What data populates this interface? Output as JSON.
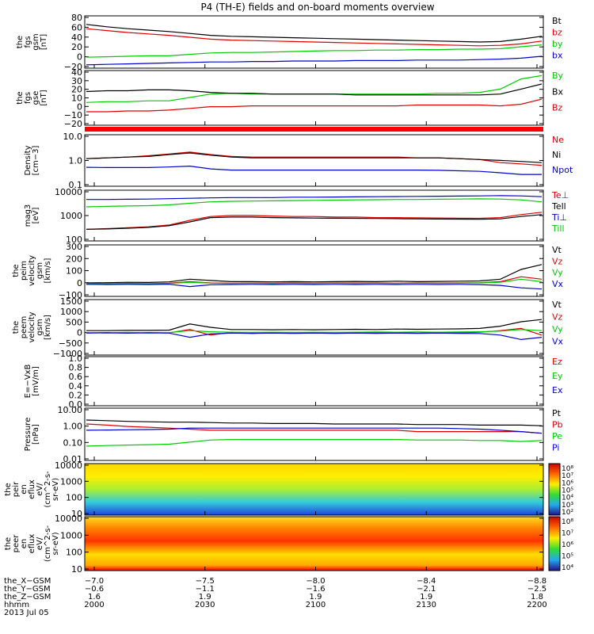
{
  "title": "P4 (TH-E) fields and on-board moments overview",
  "colors": {
    "black": "#000000",
    "red": "#dd0000",
    "green": "#00cc00",
    "blue": "#0000cc"
  },
  "chart_data": [
    {
      "type": "line",
      "ylabel": [
        "the",
        "fgs",
        "gsm",
        "[nT]"
      ],
      "yticks": [
        "80",
        "60",
        "40",
        "20",
        "0",
        "−20"
      ],
      "ylim": [
        -25,
        85
      ],
      "series": [
        {
          "name": "Bt",
          "color": "black",
          "values": [
            67,
            62,
            58,
            55,
            52,
            48,
            44,
            42,
            41,
            40,
            39,
            38,
            37,
            36,
            35,
            34,
            33,
            32,
            31,
            30,
            31,
            36,
            42
          ]
        },
        {
          "name": "bz",
          "color": "red",
          "values": [
            58,
            54,
            50,
            47,
            44,
            40,
            36,
            34,
            33,
            32,
            31,
            30,
            29,
            28,
            27,
            26,
            25,
            24,
            23,
            22,
            23,
            26,
            32
          ]
        },
        {
          "name": "by",
          "color": "green",
          "values": [
            -2,
            -1,
            0,
            1,
            1,
            4,
            7,
            8,
            8,
            9,
            10,
            11,
            12,
            12,
            13,
            13,
            14,
            14,
            15,
            15,
            16,
            20,
            24
          ]
        },
        {
          "name": "bx",
          "color": "blue",
          "values": [
            -18,
            -17,
            -16,
            -15,
            -14,
            -13,
            -12,
            -12,
            -11,
            -11,
            -10,
            -10,
            -10,
            -9,
            -9,
            -9,
            -8,
            -8,
            -8,
            -7,
            -6,
            -4,
            0
          ]
        }
      ]
    },
    {
      "type": "line",
      "ylabel": [
        "the",
        "fgs",
        "gse",
        "[nT]"
      ],
      "yticks": [
        "40",
        "30",
        "20",
        "10",
        "0",
        "−10",
        "−20"
      ],
      "ylim": [
        -25,
        40
      ],
      "series": [
        {
          "name": "By",
          "color": "green",
          "values": [
            2,
            3,
            3,
            4,
            4,
            8,
            12,
            13,
            12,
            12,
            12,
            12,
            12,
            12,
            12,
            12,
            12,
            13,
            13,
            14,
            18,
            30,
            34
          ]
        },
        {
          "name": "Bx",
          "color": "black",
          "values": [
            15,
            16,
            16,
            17,
            17,
            16,
            14,
            13,
            13,
            12,
            12,
            12,
            12,
            11,
            11,
            11,
            11,
            11,
            11,
            11,
            12,
            18,
            24
          ]
        },
        {
          "name": "Bz",
          "color": "red",
          "values": [
            -9,
            -9,
            -8,
            -8,
            -7,
            -5,
            -3,
            -3,
            -2,
            -2,
            -2,
            -2,
            -2,
            -2,
            -2,
            -2,
            -1,
            -1,
            -1,
            -1,
            -2,
            0,
            6
          ]
        }
      ]
    },
    {
      "type": "line",
      "log": true,
      "ylabel": [
        "Density",
        "[cm−3]"
      ],
      "yticks": [
        "10.0",
        "1.0",
        "0.1"
      ],
      "ylim": [
        0.1,
        12
      ],
      "series": [
        {
          "name": "Ne",
          "color": "red",
          "values": [
            1.3,
            1.4,
            1.5,
            1.7,
            2.0,
            2.4,
            1.9,
            1.6,
            1.5,
            1.5,
            1.5,
            1.5,
            1.5,
            1.5,
            1.5,
            1.5,
            1.4,
            1.4,
            1.3,
            1.2,
            0.9,
            0.8,
            0.7
          ]
        },
        {
          "name": "Ni",
          "color": "black",
          "values": [
            1.3,
            1.4,
            1.5,
            1.6,
            1.9,
            2.2,
            1.8,
            1.5,
            1.4,
            1.4,
            1.4,
            1.4,
            1.4,
            1.4,
            1.4,
            1.4,
            1.4,
            1.4,
            1.3,
            1.2,
            1.1,
            1.0,
            0.9
          ]
        },
        {
          "name": "Npot",
          "color": "blue",
          "values": [
            0.58,
            0.57,
            0.57,
            0.57,
            0.6,
            0.65,
            0.5,
            0.45,
            0.45,
            0.45,
            0.45,
            0.45,
            0.45,
            0.45,
            0.45,
            0.45,
            0.45,
            0.44,
            0.42,
            0.4,
            0.35,
            0.3,
            0.3
          ]
        }
      ]
    },
    {
      "type": "line",
      "log": true,
      "ylabel": [
        "mag3",
        "[eV]"
      ],
      "yticks": [
        "10000",
        "1000",
        "100"
      ],
      "ylim": [
        100,
        12000
      ],
      "series": [
        {
          "name": "Te⊥",
          "color": "red",
          "values": [
            300,
            320,
            350,
            380,
            450,
            700,
            1000,
            1100,
            1100,
            1050,
            1000,
            1000,
            950,
            950,
            900,
            900,
            880,
            870,
            850,
            840,
            900,
            1200,
            1500
          ]
        },
        {
          "name": "Tell",
          "color": "black",
          "values": [
            300,
            310,
            330,
            360,
            420,
            600,
            900,
            950,
            950,
            900,
            880,
            860,
            850,
            840,
            830,
            820,
            800,
            790,
            780,
            770,
            800,
            1000,
            1200
          ]
        },
        {
          "name": "Ti⊥",
          "color": "blue",
          "values": [
            5000,
            5000,
            5100,
            5200,
            5400,
            5600,
            5800,
            6000,
            6000,
            6000,
            6200,
            6200,
            6300,
            6400,
            6500,
            6600,
            6700,
            6800,
            6900,
            7000,
            7200,
            7000,
            6500
          ]
        },
        {
          "name": "Till",
          "color": "green",
          "values": [
            2500,
            2600,
            2700,
            2800,
            3000,
            3500,
            4000,
            4200,
            4300,
            4400,
            4500,
            4600,
            4700,
            4800,
            4900,
            5000,
            5000,
            5100,
            5200,
            5300,
            5200,
            4800,
            4000
          ]
        }
      ]
    },
    {
      "type": "line",
      "ylabel": [
        "the",
        "peim",
        "velocity",
        "gsm",
        "[km/s]"
      ],
      "yticks": [
        "300",
        "200",
        "100",
        "0",
        "−100"
      ],
      "ylim": [
        -100,
        320
      ],
      "series": [
        {
          "name": "Vt",
          "color": "black",
          "values": [
            10,
            12,
            15,
            14,
            18,
            40,
            30,
            20,
            20,
            18,
            20,
            18,
            20,
            22,
            20,
            24,
            20,
            22,
            24,
            26,
            40,
            120,
            160
          ]
        },
        {
          "name": "Vz",
          "color": "red",
          "values": [
            5,
            4,
            6,
            5,
            8,
            20,
            10,
            8,
            9,
            8,
            10,
            8,
            10,
            9,
            10,
            8,
            10,
            9,
            10,
            12,
            20,
            60,
            40
          ]
        },
        {
          "name": "Vy",
          "color": "green",
          "values": [
            3,
            2,
            4,
            3,
            5,
            15,
            8,
            6,
            7,
            5,
            7,
            6,
            8,
            6,
            7,
            6,
            8,
            7,
            8,
            10,
            15,
            40,
            20
          ]
        },
        {
          "name": "Vx",
          "color": "blue",
          "values": [
            -2,
            -3,
            -2,
            -3,
            -1,
            -20,
            -5,
            -3,
            -2,
            -3,
            -2,
            -3,
            -2,
            -3,
            -2,
            -3,
            -2,
            -3,
            -2,
            -4,
            -10,
            -30,
            -40
          ]
        }
      ]
    },
    {
      "type": "line",
      "ylabel": [
        "the",
        "peem",
        "velocity",
        "gsm",
        "[km/s]"
      ],
      "yticks": [
        "1500",
        "1000",
        "500",
        "0",
        "−500",
        "−1000"
      ],
      "ylim": [
        -1000,
        1500
      ],
      "series": [
        {
          "name": "Vt",
          "color": "black",
          "values": [
            100,
            100,
            110,
            110,
            120,
            400,
            250,
            150,
            150,
            140,
            150,
            140,
            150,
            160,
            150,
            170,
            160,
            170,
            180,
            200,
            300,
            500,
            600
          ]
        },
        {
          "name": "Vz",
          "color": "red",
          "values": [
            0,
            10,
            -10,
            10,
            0,
            150,
            -100,
            20,
            -20,
            10,
            0,
            10,
            -10,
            20,
            0,
            10,
            -10,
            20,
            0,
            30,
            100,
            200,
            -100
          ]
        },
        {
          "name": "Vy",
          "color": "green",
          "values": [
            10,
            0,
            20,
            0,
            10,
            100,
            50,
            30,
            20,
            30,
            20,
            30,
            20,
            30,
            40,
            30,
            40,
            30,
            40,
            50,
            80,
            150,
            100
          ]
        },
        {
          "name": "Vx",
          "color": "blue",
          "values": [
            -10,
            0,
            -10,
            0,
            -10,
            -200,
            -50,
            -10,
            -20,
            -10,
            -20,
            -10,
            -20,
            -10,
            -20,
            -10,
            -20,
            -10,
            -20,
            -30,
            -100,
            -300,
            -200
          ]
        }
      ]
    },
    {
      "type": "line",
      "ylabel": [
        "E=−VxB",
        "[mV/m]"
      ],
      "yticks": [
        "1.0",
        "0.8",
        "0.6",
        "0.4",
        "0.2",
        "0.0"
      ],
      "ylim": [
        0,
        1
      ],
      "series": [
        {
          "name": "Ez",
          "color": "red",
          "values": []
        },
        {
          "name": "Ey",
          "color": "green",
          "values": []
        },
        {
          "name": "Ex",
          "color": "blue",
          "values": []
        }
      ]
    },
    {
      "type": "line",
      "log": true,
      "ylabel": [
        "Pressure",
        "[nPa]"
      ],
      "yticks": [
        "10.00",
        "1.00",
        "0.10",
        "0.01"
      ],
      "ylim": [
        0.01,
        12
      ],
      "series": [
        {
          "name": "Pt",
          "color": "black",
          "values": [
            2.4,
            2.2,
            2.0,
            1.9,
            1.8,
            1.8,
            1.7,
            1.6,
            1.6,
            1.5,
            1.5,
            1.5,
            1.4,
            1.4,
            1.4,
            1.4,
            1.3,
            1.3,
            1.3,
            1.2,
            1.2,
            1.2,
            1.1
          ]
        },
        {
          "name": "Pb",
          "color": "red",
          "values": [
            1.4,
            1.2,
            1.0,
            0.9,
            0.8,
            0.7,
            0.6,
            0.6,
            0.6,
            0.6,
            0.6,
            0.6,
            0.6,
            0.6,
            0.6,
            0.6,
            0.5,
            0.5,
            0.5,
            0.5,
            0.5,
            0.5,
            0.4
          ]
        },
        {
          "name": "Pe",
          "color": "green",
          "values": [
            0.07,
            0.075,
            0.08,
            0.085,
            0.09,
            0.12,
            0.16,
            0.17,
            0.17,
            0.17,
            0.17,
            0.17,
            0.17,
            0.17,
            0.17,
            0.17,
            0.16,
            0.16,
            0.16,
            0.15,
            0.15,
            0.13,
            0.15
          ]
        },
        {
          "name": "Pi",
          "color": "blue",
          "values": [
            0.6,
            0.62,
            0.64,
            0.66,
            0.7,
            0.8,
            0.8,
            0.8,
            0.8,
            0.8,
            0.8,
            0.8,
            0.8,
            0.8,
            0.8,
            0.8,
            0.8,
            0.8,
            0.75,
            0.7,
            0.6,
            0.5,
            0.4
          ]
        }
      ]
    },
    {
      "type": "heatmap",
      "ylabel": [
        "the",
        "peir",
        "en",
        "eflux",
        "eV/",
        "(cm^2-s-",
        "sr-eV)"
      ],
      "yticks": [
        "10000",
        "1000",
        "100",
        "10"
      ],
      "colorbar": [
        "10⁸",
        "10⁷",
        "10⁶",
        "10⁵",
        "10⁴",
        "10³",
        "10²"
      ]
    },
    {
      "type": "heatmap",
      "ylabel": [
        "the",
        "peer",
        "en",
        "eflux",
        "eV/",
        "(cm^2-s-",
        "sr-eV)"
      ],
      "yticks": [
        "10000",
        "1000",
        "100",
        "10"
      ],
      "colorbar": [
        "10⁸",
        "10⁷",
        "10⁶",
        "10⁵",
        "10⁴"
      ]
    }
  ],
  "xaxis": {
    "row_labels": [
      "the_X−GSM",
      "the_Y−GSM",
      "the_Z−GSM",
      "hhmm",
      "2013 Jul 05"
    ],
    "ticks": [
      {
        "values": [
          "−7.0",
          "−0.6",
          "1.6",
          "2000"
        ]
      },
      {
        "values": [
          "−7.5",
          "−1.1",
          "1.9",
          "2030"
        ]
      },
      {
        "values": [
          "−8.0",
          "−1.6",
          "1.9",
          "2100"
        ]
      },
      {
        "values": [
          "−8.4",
          "−2.1",
          "1.9",
          "2130"
        ]
      },
      {
        "values": [
          "−8.8",
          "−2.5",
          "1.8",
          "2200"
        ]
      }
    ]
  }
}
